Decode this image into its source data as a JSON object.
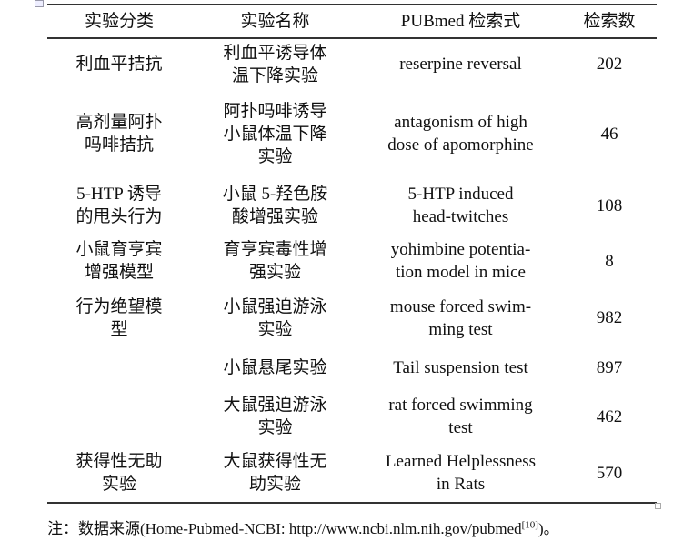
{
  "headers": [
    "实验分类",
    "实验名称",
    "PUBmed 检索式",
    "检索数"
  ],
  "rows": [
    {
      "category": [
        "利血平拮抗"
      ],
      "name": [
        "利血平诱导体",
        "温下降实验"
      ],
      "query": [
        "reserpine reversal"
      ],
      "count": "202",
      "h": 56
    },
    {
      "category": [
        "高剂量阿扑",
        "吗啡拮抗"
      ],
      "name": [
        "阿扑吗啡诱导",
        "小鼠体温下降",
        "实验"
      ],
      "query": [
        "antagonism of high",
        "dose of apomorphine"
      ],
      "count": "46",
      "h": 98
    },
    {
      "category": [
        "5-HTP 诱导",
        "的甩头行为"
      ],
      "name": [
        "小鼠 5-羟色胺",
        "酸增强实验"
      ],
      "query": [
        "5-HTP induced",
        "head-twitches"
      ],
      "count": "108",
      "h": 60
    },
    {
      "category": [
        "小鼠育亨宾",
        "增强模型"
      ],
      "name": [
        "育亨宾毒性增",
        "强实验"
      ],
      "query": [
        "yohimbine potentia-",
        "tion model in mice"
      ],
      "count": "8",
      "h": 62
    },
    {
      "category": [
        "行为绝望模",
        "型"
      ],
      "name": [
        "小鼠强迫游泳",
        "实验"
      ],
      "query": [
        "mouse forced swim-",
        "ming test"
      ],
      "count": "982",
      "h": 63
    },
    {
      "category": [],
      "name": [
        "小鼠悬尾实验"
      ],
      "query": [
        "Tail suspension test"
      ],
      "count": "897",
      "h": 47
    },
    {
      "category": [],
      "name": [
        "大鼠强迫游泳",
        "实验"
      ],
      "query": [
        "rat forced swimming",
        "test"
      ],
      "count": "462",
      "h": 60
    },
    {
      "category": [
        "获得性无助",
        "实验"
      ],
      "name": [
        "大鼠获得性无",
        "助实验"
      ],
      "query": [
        "Learned Helplessness",
        "in Rats"
      ],
      "count": "570",
      "h": 65
    }
  ],
  "note": {
    "text": "注：数据来源(Home-Pubmed-NCBI: http://www.ncbi.nlm.nih.gov/pubmed",
    "ref": "[10]",
    "end": ")。"
  }
}
